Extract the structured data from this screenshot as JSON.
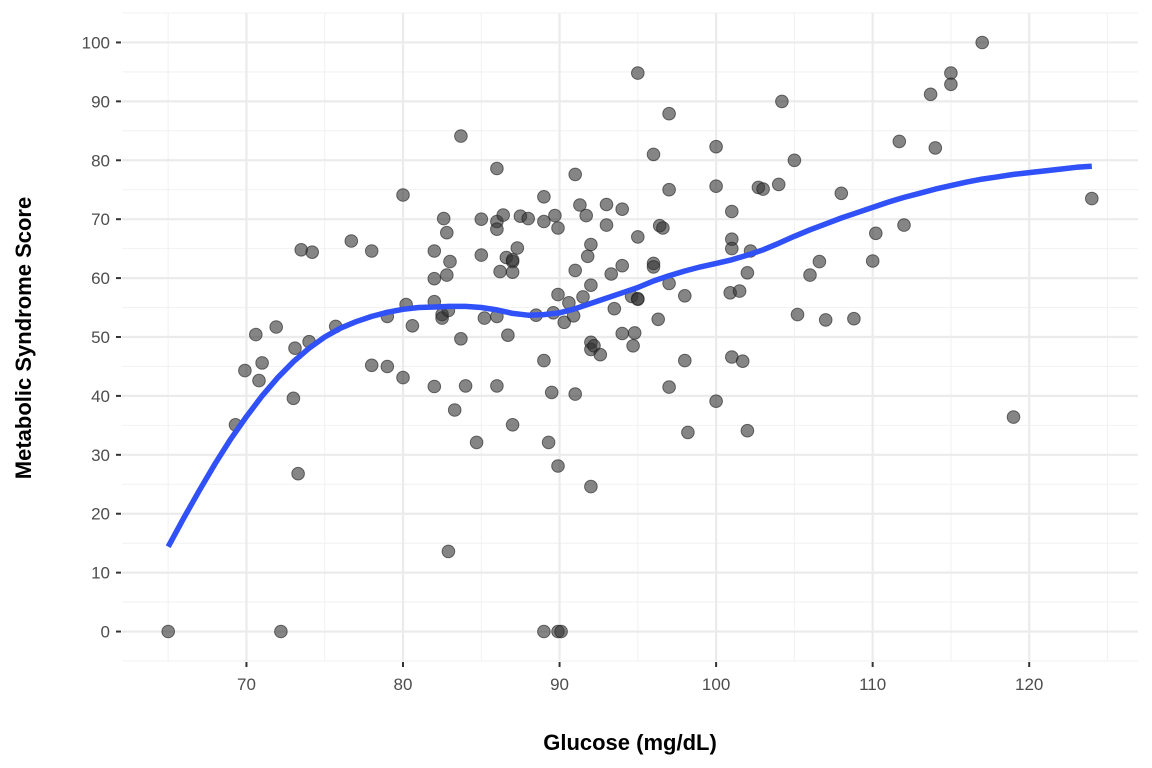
{
  "chart_data": {
    "type": "scatter",
    "title": "",
    "xlabel": "Glucose (mg/dL)",
    "ylabel": "Metabolic Syndrome Score",
    "xlim": [
      62.05,
      126.95
    ],
    "ylim": [
      -5,
      105
    ],
    "x_ticks": [
      70,
      80,
      90,
      100,
      110,
      120
    ],
    "y_ticks": [
      0,
      10,
      20,
      30,
      40,
      50,
      60,
      70,
      80,
      90,
      100
    ],
    "x_tick_labels": [
      "70",
      "80",
      "90",
      "100",
      "110",
      "120"
    ],
    "y_tick_labels": [
      "0",
      "10",
      "20",
      "30",
      "40",
      "50",
      "60",
      "70",
      "80",
      "90",
      "100"
    ],
    "grid": true,
    "legend": "none",
    "colors": {
      "points": "#333333",
      "smooth": "#3050f8",
      "grid_major": "#ebebeb",
      "grid_minor": "#f2f2f2"
    },
    "series": [
      {
        "kind": "points",
        "points": [
          [
            65,
            0
          ],
          [
            72.2,
            0
          ],
          [
            89,
            0
          ],
          [
            89.9,
            0
          ],
          [
            90.1,
            0
          ],
          [
            69.3,
            35.1
          ],
          [
            69.9,
            44.3
          ],
          [
            70.6,
            50.4
          ],
          [
            70.8,
            42.6
          ],
          [
            71,
            45.6
          ],
          [
            71.9,
            51.7
          ],
          [
            73,
            39.6
          ],
          [
            73.1,
            48.1
          ],
          [
            73.3,
            26.8
          ],
          [
            73.5,
            64.8
          ],
          [
            74,
            49.2
          ],
          [
            74.2,
            64.4
          ],
          [
            75.7,
            51.8
          ],
          [
            76.7,
            66.3
          ],
          [
            78,
            45.2
          ],
          [
            78,
            64.6
          ],
          [
            79,
            53.5
          ],
          [
            79,
            45
          ],
          [
            80,
            43.1
          ],
          [
            80,
            74.1
          ],
          [
            80.2,
            55.5
          ],
          [
            80.6,
            51.9
          ],
          [
            82,
            64.6
          ],
          [
            82,
            59.9
          ],
          [
            82,
            56
          ],
          [
            82,
            41.6
          ],
          [
            82.5,
            53.8
          ],
          [
            82.5,
            53.2
          ],
          [
            82.6,
            70.1
          ],
          [
            82.8,
            67.7
          ],
          [
            82.8,
            60.5
          ],
          [
            82.9,
            54.5
          ],
          [
            82.9,
            13.6
          ],
          [
            83,
            62.8
          ],
          [
            83.3,
            37.6
          ],
          [
            83.7,
            49.7
          ],
          [
            83.7,
            84.1
          ],
          [
            84,
            41.7
          ],
          [
            84.7,
            32.1
          ],
          [
            85,
            70
          ],
          [
            85,
            63.9
          ],
          [
            85.2,
            53.2
          ],
          [
            86,
            78.6
          ],
          [
            86,
            69.6
          ],
          [
            86,
            68.3
          ],
          [
            86,
            41.7
          ],
          [
            86,
            53.5
          ],
          [
            86.2,
            61.1
          ],
          [
            86.4,
            70.7
          ],
          [
            86.6,
            63.5
          ],
          [
            86.7,
            50.3
          ],
          [
            87,
            35.1
          ],
          [
            87,
            62.8
          ],
          [
            87,
            61
          ],
          [
            87,
            63.1
          ],
          [
            87.3,
            65.1
          ],
          [
            87.5,
            70.5
          ],
          [
            88,
            70.1
          ],
          [
            88.5,
            53.7
          ],
          [
            89,
            73.8
          ],
          [
            89,
            69.6
          ],
          [
            89,
            46
          ],
          [
            89.3,
            32.1
          ],
          [
            89.5,
            40.6
          ],
          [
            89.6,
            54.1
          ],
          [
            89.7,
            70.6
          ],
          [
            89.9,
            68.5
          ],
          [
            89.9,
            57.2
          ],
          [
            89.9,
            28.1
          ],
          [
            90.3,
            52.5
          ],
          [
            90.6,
            55.8
          ],
          [
            90.9,
            53.6
          ],
          [
            91,
            77.6
          ],
          [
            91,
            61.3
          ],
          [
            91,
            40.3
          ],
          [
            91.3,
            72.4
          ],
          [
            91.5,
            56.8
          ],
          [
            91.7,
            70.6
          ],
          [
            91.8,
            63.7
          ],
          [
            92,
            65.7
          ],
          [
            92,
            58.8
          ],
          [
            92,
            49.1
          ],
          [
            92,
            47.9
          ],
          [
            92,
            24.6
          ],
          [
            92.2,
            48.5
          ],
          [
            92.6,
            47
          ],
          [
            93,
            72.5
          ],
          [
            93,
            69
          ],
          [
            93.3,
            60.7
          ],
          [
            93.5,
            54.8
          ],
          [
            94,
            71.7
          ],
          [
            94,
            62.1
          ],
          [
            94,
            50.6
          ],
          [
            94.6,
            56.9
          ],
          [
            94.7,
            48.5
          ],
          [
            94.8,
            50.7
          ],
          [
            95,
            94.8
          ],
          [
            95,
            67
          ],
          [
            95,
            56.5
          ],
          [
            95,
            56.4
          ],
          [
            96,
            81
          ],
          [
            96,
            62.5
          ],
          [
            96,
            61.9
          ],
          [
            96.3,
            53
          ],
          [
            96.4,
            68.9
          ],
          [
            96.6,
            68.5
          ],
          [
            97,
            87.9
          ],
          [
            97,
            75
          ],
          [
            97,
            59.1
          ],
          [
            97,
            41.5
          ],
          [
            98,
            57
          ],
          [
            98,
            46
          ],
          [
            98.2,
            33.8
          ],
          [
            100,
            82.3
          ],
          [
            100,
            75.6
          ],
          [
            100,
            39.1
          ],
          [
            100.9,
            57.5
          ],
          [
            101,
            71.3
          ],
          [
            101,
            66.6
          ],
          [
            101,
            65
          ],
          [
            101,
            46.6
          ],
          [
            101.5,
            57.8
          ],
          [
            101.7,
            45.9
          ],
          [
            102,
            60.9
          ],
          [
            102,
            34.1
          ],
          [
            102.2,
            64.6
          ],
          [
            102.7,
            75.4
          ],
          [
            103,
            75.1
          ],
          [
            104,
            75.9
          ],
          [
            104.2,
            90
          ],
          [
            105,
            80
          ],
          [
            105.2,
            53.8
          ],
          [
            106,
            60.5
          ],
          [
            106.6,
            62.8
          ],
          [
            107,
            52.9
          ],
          [
            108,
            74.4
          ],
          [
            108.8,
            53.1
          ],
          [
            110,
            62.9
          ],
          [
            110.2,
            67.6
          ],
          [
            111.7,
            83.2
          ],
          [
            112,
            69
          ],
          [
            113.7,
            91.2
          ],
          [
            114,
            82.1
          ],
          [
            115,
            94.8
          ],
          [
            115,
            92.9
          ],
          [
            117,
            100
          ],
          [
            119,
            36.4
          ],
          [
            124,
            73.5
          ]
        ]
      },
      {
        "kind": "smooth",
        "points": [
          [
            65,
            14.4
          ],
          [
            66,
            19.3
          ],
          [
            67,
            24
          ],
          [
            68,
            28.5
          ],
          [
            69,
            32.7
          ],
          [
            70,
            36.5
          ],
          [
            71,
            40
          ],
          [
            72,
            43.1
          ],
          [
            73,
            45.8
          ],
          [
            74,
            48.1
          ],
          [
            75,
            50
          ],
          [
            76,
            51.5
          ],
          [
            77,
            52.6
          ],
          [
            78,
            53.5
          ],
          [
            79,
            54.2
          ],
          [
            80,
            54.7
          ],
          [
            81,
            55
          ],
          [
            82,
            55.1
          ],
          [
            83,
            55.2
          ],
          [
            84,
            55.2
          ],
          [
            85,
            55
          ],
          [
            86,
            54.6
          ],
          [
            87,
            54
          ],
          [
            88,
            53.7
          ],
          [
            89,
            53.8
          ],
          [
            90,
            54.1
          ],
          [
            91,
            54.8
          ],
          [
            92,
            55.7
          ],
          [
            93,
            56.6
          ],
          [
            94,
            57.5
          ],
          [
            95,
            58.4
          ],
          [
            96,
            59.5
          ],
          [
            97,
            60.4
          ],
          [
            98,
            61.2
          ],
          [
            99,
            61.9
          ],
          [
            100,
            62.5
          ],
          [
            101,
            63.1
          ],
          [
            102,
            63.9
          ],
          [
            103,
            64.8
          ],
          [
            104,
            65.9
          ],
          [
            105,
            67.1
          ],
          [
            106,
            68.2
          ],
          [
            107,
            69.2
          ],
          [
            108,
            70.2
          ],
          [
            109,
            71.1
          ],
          [
            110,
            72
          ],
          [
            111,
            72.9
          ],
          [
            112,
            73.7
          ],
          [
            113,
            74.4
          ],
          [
            114,
            75.1
          ],
          [
            115,
            75.7
          ],
          [
            116,
            76.3
          ],
          [
            117,
            76.8
          ],
          [
            118,
            77.2
          ],
          [
            119,
            77.6
          ],
          [
            120,
            77.9
          ],
          [
            121,
            78.2
          ],
          [
            122,
            78.5
          ],
          [
            123,
            78.8
          ],
          [
            124,
            79
          ]
        ]
      }
    ]
  }
}
